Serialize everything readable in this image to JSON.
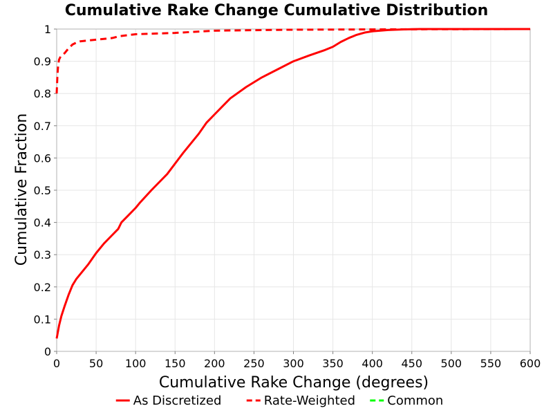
{
  "chart_data": {
    "type": "line",
    "title": "Cumulative Rake Change Cumulative Distribution",
    "xlabel": "Cumulative Rake Change (degrees)",
    "ylabel": "Cumulative Fraction",
    "xlim": [
      0,
      600
    ],
    "ylim": [
      0,
      1
    ],
    "x_ticks": [
      0,
      50,
      100,
      150,
      200,
      250,
      300,
      350,
      400,
      450,
      500,
      550,
      600
    ],
    "y_ticks": [
      0,
      0.1,
      0.2,
      0.3,
      0.4,
      0.5,
      0.6,
      0.7,
      0.8,
      0.9,
      1
    ],
    "grid": true,
    "legend_position": "bottom",
    "series": [
      {
        "name": "As Discretized",
        "color": "#ff0000",
        "style": "solid",
        "x": [
          0,
          3,
          6,
          10,
          15,
          20,
          25,
          30,
          40,
          50,
          60,
          70,
          78,
          82,
          90,
          100,
          105,
          120,
          140,
          160,
          180,
          190,
          200,
          210,
          220,
          240,
          260,
          280,
          300,
          320,
          340,
          350,
          360,
          370,
          380,
          390,
          400,
          420,
          440,
          460,
          600
        ],
        "y": [
          0.04,
          0.08,
          0.11,
          0.14,
          0.175,
          0.205,
          0.225,
          0.24,
          0.27,
          0.305,
          0.335,
          0.36,
          0.38,
          0.4,
          0.42,
          0.445,
          0.46,
          0.5,
          0.55,
          0.615,
          0.675,
          0.71,
          0.735,
          0.76,
          0.785,
          0.82,
          0.85,
          0.875,
          0.9,
          0.918,
          0.935,
          0.945,
          0.96,
          0.972,
          0.982,
          0.989,
          0.993,
          0.997,
          0.999,
          1.0,
          1.0
        ]
      },
      {
        "name": "Rate-Weighted",
        "color": "#ff0000",
        "style": "dashed",
        "x": [
          0,
          0.5,
          1,
          2,
          3,
          5,
          10,
          15,
          20,
          25,
          30,
          50,
          70,
          80,
          100,
          150,
          200,
          300,
          400,
          600
        ],
        "y": [
          0.8,
          0.83,
          0.86,
          0.89,
          0.905,
          0.915,
          0.925,
          0.94,
          0.952,
          0.958,
          0.962,
          0.967,
          0.972,
          0.978,
          0.984,
          0.988,
          0.995,
          0.998,
          0.999,
          1.0
        ]
      },
      {
        "name": "Common",
        "color": "#00ff00",
        "style": "dashed",
        "x": [],
        "y": []
      }
    ]
  }
}
